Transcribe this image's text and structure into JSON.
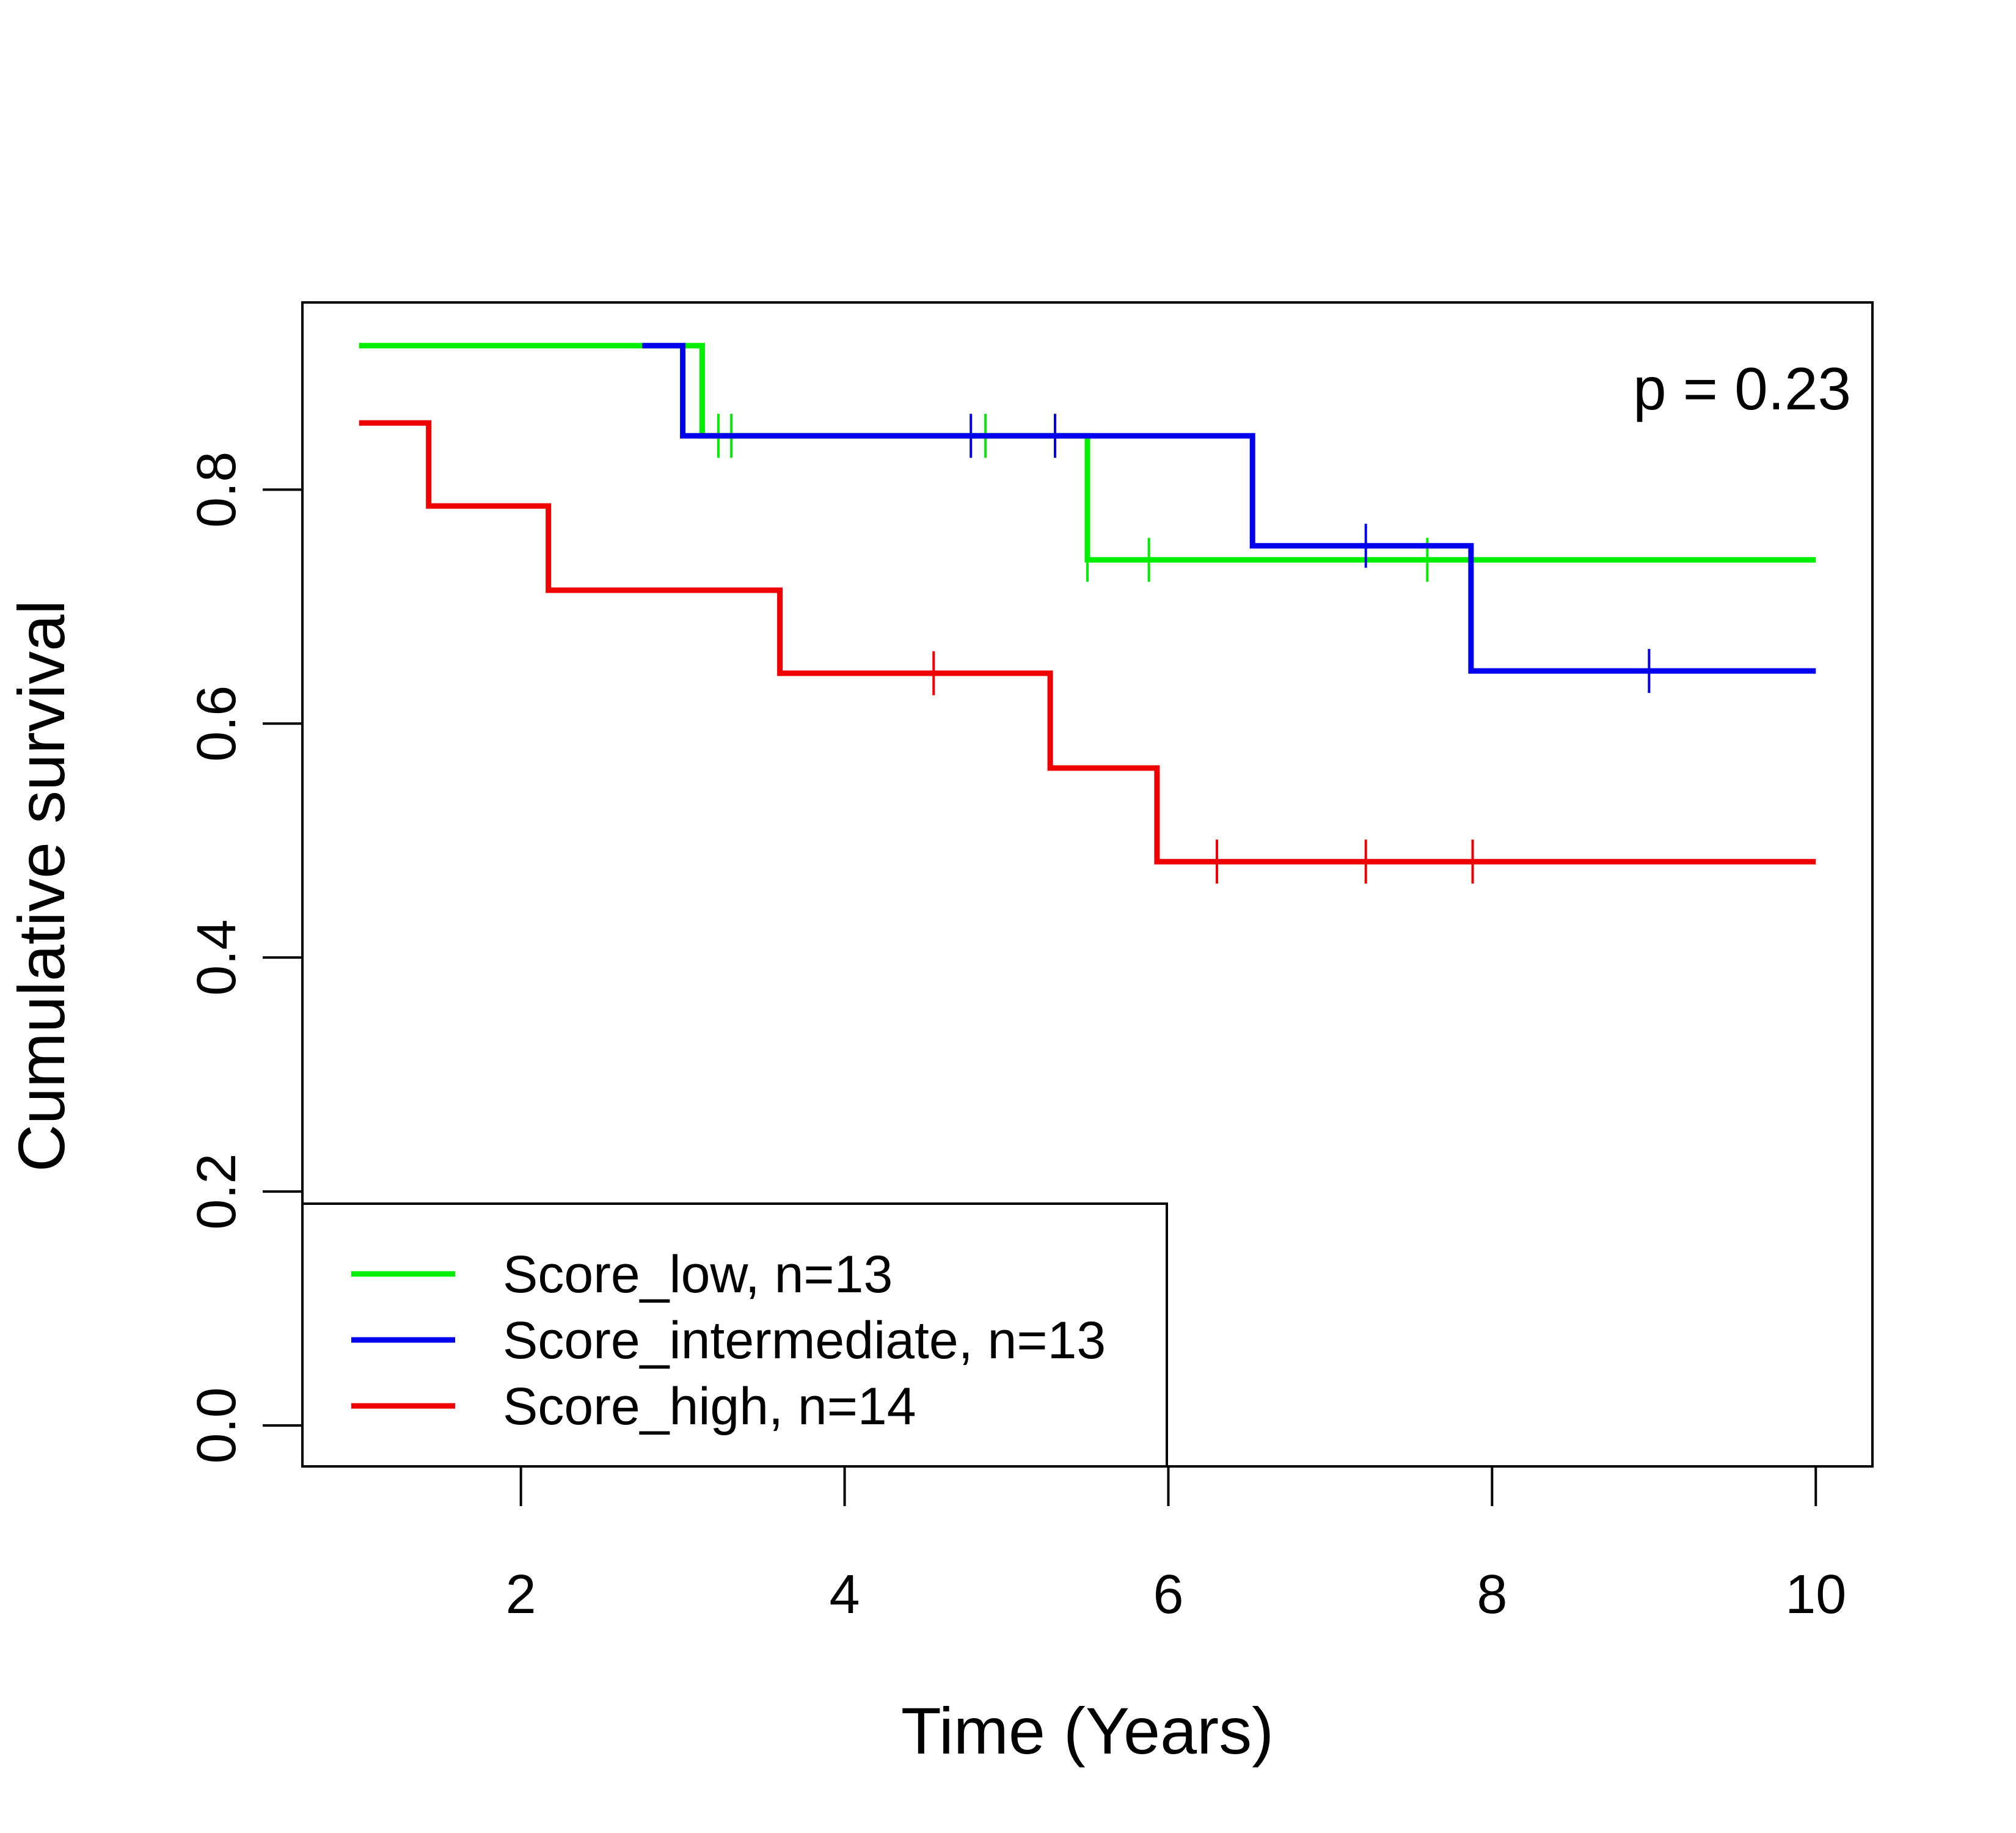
{
  "chart_data": {
    "type": "line",
    "subtype": "kaplan-meier",
    "xlabel": "Time (Years)",
    "ylabel": "Cumulative survival",
    "xlim": [
      0.65,
      10.35
    ],
    "ylim": [
      -0.035,
      0.96
    ],
    "x_ticks": [
      2,
      4,
      6,
      8,
      10
    ],
    "x_tick_labels": [
      "2",
      "4",
      "6",
      "8",
      "10"
    ],
    "y_ticks": [
      0.0,
      0.2,
      0.4,
      0.6,
      0.8
    ],
    "y_tick_labels": [
      "0.0",
      "0.2",
      "0.4",
      "0.6",
      "0.8"
    ],
    "grid": false,
    "annotation": "p = 0.23",
    "legend_position": "bottom-left",
    "series": [
      {
        "name": "Score_low, n=13",
        "color": "#00ee00",
        "steps": [
          [
            1.0,
            0.923
          ],
          [
            3.12,
            0.846
          ],
          [
            5.5,
            0.74
          ],
          [
            10.0,
            0.74
          ]
        ],
        "censor_times": [
          3.22,
          3.3,
          4.87,
          5.5,
          5.88,
          7.6
        ]
      },
      {
        "name": "Score_intermediate, n=13",
        "color": "#0000ee",
        "steps": [
          [
            2.75,
            0.923
          ],
          [
            3.0,
            0.846
          ],
          [
            6.52,
            0.752
          ],
          [
            7.87,
            0.645
          ],
          [
            10.0,
            0.645
          ]
        ],
        "censor_times": [
          4.78,
          5.3,
          7.22,
          8.97
        ]
      },
      {
        "name": "Score_high, n=14",
        "color": "#ee0000",
        "steps": [
          [
            1.0,
            0.857
          ],
          [
            1.43,
            0.786
          ],
          [
            2.17,
            0.714
          ],
          [
            3.6,
            0.643
          ],
          [
            5.27,
            0.562
          ],
          [
            5.93,
            0.482
          ],
          [
            10.0,
            0.482
          ]
        ],
        "censor_times": [
          4.55,
          6.3,
          7.22,
          7.88
        ]
      }
    ]
  }
}
